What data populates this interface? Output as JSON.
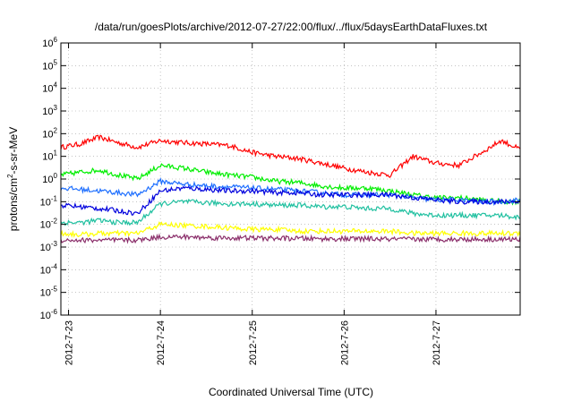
{
  "chart_data": {
    "type": "line",
    "title": "/data/run/goesPlots/archive/2012-07-27/22:00/flux/../flux/5daysEarthDataFluxes.txt",
    "xlabel": "Coordinated Universal Time (UTC)",
    "ylabel": "protons/cm²-s-sr-MeV",
    "ylabel_base": "protons/cm",
    "ylabel_sup": "2",
    "ylabel_rest": "-s-sr-MeV",
    "y_scale": "log",
    "ylim": [
      1e-06,
      1000000.0
    ],
    "y_ticks": [
      {
        "value": 1e-06,
        "base": "10",
        "exp": "-6"
      },
      {
        "value": 1e-05,
        "base": "10",
        "exp": "-5"
      },
      {
        "value": 0.0001,
        "base": "10",
        "exp": "-4"
      },
      {
        "value": 0.001,
        "base": "10",
        "exp": "-3"
      },
      {
        "value": 0.01,
        "base": "10",
        "exp": "-2"
      },
      {
        "value": 0.1,
        "base": "10",
        "exp": "-1"
      },
      {
        "value": 1,
        "base": "10",
        "exp": "0"
      },
      {
        "value": 10,
        "base": "10",
        "exp": "1"
      },
      {
        "value": 100,
        "base": "10",
        "exp": "2"
      },
      {
        "value": 1000,
        "base": "10",
        "exp": "3"
      },
      {
        "value": 10000,
        "base": "10",
        "exp": "4"
      },
      {
        "value": 100000,
        "base": "10",
        "exp": "5"
      },
      {
        "value": 1000000,
        "base": "10",
        "exp": "6"
      }
    ],
    "xlim": [
      "2012-07-22 22:00",
      "2012-07-27 22:00"
    ],
    "x_ticks": [
      "2012-7-23",
      "2012-7-24",
      "2012-7-25",
      "2012-7-26",
      "2012-7-27"
    ],
    "grid": true,
    "legend": "none",
    "series": [
      {
        "color": "#ff0000",
        "x": [
          "2012-07-22 22:00",
          "2012-07-23 03:00",
          "2012-07-23 08:00",
          "2012-07-23 13:00",
          "2012-07-23 18:00",
          "2012-07-24 00:00",
          "2012-07-24 06:00",
          "2012-07-24 12:00",
          "2012-07-24 18:00",
          "2012-07-25 00:00",
          "2012-07-25 06:00",
          "2012-07-25 12:00",
          "2012-07-25 18:00",
          "2012-07-26 00:00",
          "2012-07-26 06:00",
          "2012-07-26 12:00",
          "2012-07-26 18:00",
          "2012-07-27 00:00",
          "2012-07-27 06:00",
          "2012-07-27 12:00",
          "2012-07-27 17:00",
          "2012-07-27 22:00"
        ],
        "values": [
          25,
          35,
          70,
          40,
          25,
          50,
          40,
          35,
          30,
          15,
          10,
          8,
          5,
          3,
          2,
          1.5,
          10,
          5,
          4,
          15,
          50,
          20
        ]
      },
      {
        "color": "#00ee00",
        "x": [
          "2012-07-22 22:00",
          "2012-07-23 03:00",
          "2012-07-23 08:00",
          "2012-07-23 13:00",
          "2012-07-23 18:00",
          "2012-07-24 00:00",
          "2012-07-24 06:00",
          "2012-07-24 12:00",
          "2012-07-24 18:00",
          "2012-07-25 00:00",
          "2012-07-25 06:00",
          "2012-07-25 12:00",
          "2012-07-25 18:00",
          "2012-07-26 00:00",
          "2012-07-26 06:00",
          "2012-07-26 12:00",
          "2012-07-26 18:00",
          "2012-07-27 00:00",
          "2012-07-27 06:00",
          "2012-07-27 12:00",
          "2012-07-27 17:00",
          "2012-07-27 22:00"
        ],
        "values": [
          1.5,
          2,
          2.5,
          1.5,
          1,
          4,
          3,
          2,
          1.5,
          1.2,
          0.8,
          0.7,
          0.5,
          0.4,
          0.4,
          0.3,
          0.2,
          0.15,
          0.15,
          0.12,
          0.1,
          0.1
        ]
      },
      {
        "color": "#1e6fff",
        "x": [
          "2012-07-22 22:00",
          "2012-07-23 03:00",
          "2012-07-23 08:00",
          "2012-07-23 13:00",
          "2012-07-23 18:00",
          "2012-07-24 00:00",
          "2012-07-24 06:00",
          "2012-07-24 12:00",
          "2012-07-24 18:00",
          "2012-07-25 00:00",
          "2012-07-25 06:00",
          "2012-07-25 12:00",
          "2012-07-25 18:00",
          "2012-07-26 00:00",
          "2012-07-26 06:00",
          "2012-07-26 12:00",
          "2012-07-26 18:00",
          "2012-07-27 00:00",
          "2012-07-27 06:00",
          "2012-07-27 12:00",
          "2012-07-27 17:00",
          "2012-07-27 22:00"
        ],
        "values": [
          0.4,
          0.35,
          0.3,
          0.25,
          0.2,
          0.8,
          0.6,
          0.5,
          0.45,
          0.4,
          0.35,
          0.3,
          0.25,
          0.2,
          0.2,
          0.2,
          0.15,
          0.12,
          0.12,
          0.1,
          0.1,
          0.12
        ]
      },
      {
        "color": "#0000dd",
        "x": [
          "2012-07-22 22:00",
          "2012-07-23 03:00",
          "2012-07-23 08:00",
          "2012-07-23 13:00",
          "2012-07-23 18:00",
          "2012-07-24 00:00",
          "2012-07-24 06:00",
          "2012-07-24 12:00",
          "2012-07-24 18:00",
          "2012-07-25 00:00",
          "2012-07-25 06:00",
          "2012-07-25 12:00",
          "2012-07-25 18:00",
          "2012-07-26 00:00",
          "2012-07-26 06:00",
          "2012-07-26 12:00",
          "2012-07-26 18:00",
          "2012-07-27 00:00",
          "2012-07-27 06:00",
          "2012-07-27 12:00",
          "2012-07-27 17:00",
          "2012-07-27 22:00"
        ],
        "values": [
          0.07,
          0.06,
          0.05,
          0.04,
          0.03,
          0.3,
          0.4,
          0.35,
          0.3,
          0.3,
          0.25,
          0.25,
          0.2,
          0.2,
          0.2,
          0.2,
          0.15,
          0.12,
          0.1,
          0.1,
          0.1,
          0.1
        ]
      },
      {
        "color": "#20c0a0",
        "x": [
          "2012-07-22 22:00",
          "2012-07-23 03:00",
          "2012-07-23 08:00",
          "2012-07-23 13:00",
          "2012-07-23 18:00",
          "2012-07-24 00:00",
          "2012-07-24 06:00",
          "2012-07-24 12:00",
          "2012-07-24 18:00",
          "2012-07-25 00:00",
          "2012-07-25 06:00",
          "2012-07-25 12:00",
          "2012-07-25 18:00",
          "2012-07-26 00:00",
          "2012-07-26 06:00",
          "2012-07-26 12:00",
          "2012-07-26 18:00",
          "2012-07-27 00:00",
          "2012-07-27 06:00",
          "2012-07-27 12:00",
          "2012-07-27 17:00",
          "2012-07-27 22:00"
        ],
        "values": [
          0.012,
          0.012,
          0.015,
          0.012,
          0.012,
          0.08,
          0.1,
          0.09,
          0.08,
          0.08,
          0.07,
          0.07,
          0.06,
          0.06,
          0.05,
          0.05,
          0.03,
          0.025,
          0.025,
          0.025,
          0.025,
          0.02
        ]
      },
      {
        "color": "#ffff00",
        "x": [
          "2012-07-22 22:00",
          "2012-07-23 03:00",
          "2012-07-23 08:00",
          "2012-07-23 13:00",
          "2012-07-23 18:00",
          "2012-07-24 00:00",
          "2012-07-24 06:00",
          "2012-07-24 12:00",
          "2012-07-24 18:00",
          "2012-07-25 00:00",
          "2012-07-25 06:00",
          "2012-07-25 12:00",
          "2012-07-25 18:00",
          "2012-07-26 00:00",
          "2012-07-26 06:00",
          "2012-07-26 12:00",
          "2012-07-26 18:00",
          "2012-07-27 00:00",
          "2012-07-27 06:00",
          "2012-07-27 12:00",
          "2012-07-27 17:00",
          "2012-07-27 22:00"
        ],
        "values": [
          0.004,
          0.0035,
          0.004,
          0.004,
          0.004,
          0.01,
          0.009,
          0.008,
          0.007,
          0.006,
          0.006,
          0.005,
          0.005,
          0.005,
          0.005,
          0.005,
          0.004,
          0.004,
          0.004,
          0.004,
          0.004,
          0.004
        ]
      },
      {
        "color": "#8b2f6b",
        "x": [
          "2012-07-22 22:00",
          "2012-07-23 03:00",
          "2012-07-23 08:00",
          "2012-07-23 13:00",
          "2012-07-23 18:00",
          "2012-07-24 00:00",
          "2012-07-24 06:00",
          "2012-07-24 12:00",
          "2012-07-24 18:00",
          "2012-07-25 00:00",
          "2012-07-25 06:00",
          "2012-07-25 12:00",
          "2012-07-25 18:00",
          "2012-07-26 00:00",
          "2012-07-26 06:00",
          "2012-07-26 12:00",
          "2012-07-26 18:00",
          "2012-07-27 00:00",
          "2012-07-27 06:00",
          "2012-07-27 12:00",
          "2012-07-27 17:00",
          "2012-07-27 22:00"
        ],
        "values": [
          0.002,
          0.002,
          0.002,
          0.002,
          0.002,
          0.0028,
          0.0028,
          0.0026,
          0.0025,
          0.0025,
          0.0024,
          0.0024,
          0.0023,
          0.0023,
          0.0023,
          0.0022,
          0.0022,
          0.0022,
          0.0022,
          0.0022,
          0.0022,
          0.0022
        ]
      }
    ]
  }
}
